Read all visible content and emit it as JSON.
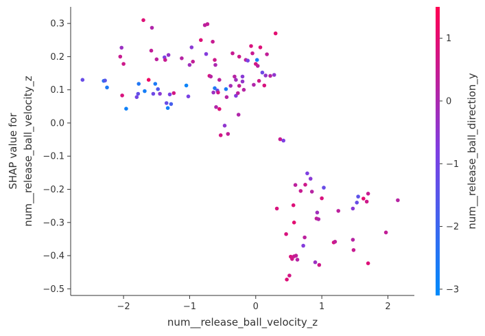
{
  "chart_data": {
    "type": "scatter",
    "title": "",
    "xlabel": "num__release_ball_velocity_z",
    "ylabel_lines": [
      "SHAP value for",
      "num__release_ball_velocity_z"
    ],
    "xlim": [
      -2.8,
      2.4
    ],
    "ylim": [
      -0.52,
      0.35
    ],
    "xticks": [
      -2,
      -1,
      0,
      1,
      2
    ],
    "xtick_labels": [
      "−2",
      "−1",
      "0",
      "1",
      "2"
    ],
    "yticks": [
      0.3,
      0.2,
      0.1,
      0.0,
      -0.1,
      -0.2,
      -0.3,
      -0.4,
      -0.5
    ],
    "ytick_labels": [
      "0.3",
      "0.2",
      "0.1",
      "0.0",
      "−0.1",
      "−0.2",
      "−0.3",
      "−0.4",
      "−0.5"
    ],
    "grid": false,
    "colorbar": {
      "label": "num__release_ball_direction_y",
      "range": [
        -3.1,
        1.5
      ],
      "ticks": [
        1,
        0,
        -1,
        -2,
        -3
      ],
      "tick_labels": [
        "1",
        "0",
        "−1",
        "−2",
        "−3"
      ],
      "color_low": "#008bfb",
      "color_mid": "#7e3fe2",
      "color_high": "#ff0052"
    },
    "points": [
      {
        "x": -2.62,
        "y": 0.13,
        "c": -1.2
      },
      {
        "x": -2.3,
        "y": 0.127,
        "c": -2.4
      },
      {
        "x": -2.28,
        "y": 0.128,
        "c": -1.5
      },
      {
        "x": -2.25,
        "y": 0.107,
        "c": -2.6
      },
      {
        "x": -2.05,
        "y": 0.2,
        "c": 0.5
      },
      {
        "x": -2.03,
        "y": 0.227,
        "c": -0.3
      },
      {
        "x": -2.02,
        "y": 0.083,
        "c": 0.8
      },
      {
        "x": -2.0,
        "y": 0.178,
        "c": 0.6
      },
      {
        "x": -1.96,
        "y": 0.043,
        "c": -2.8
      },
      {
        "x": -1.8,
        "y": 0.078,
        "c": -1.0
      },
      {
        "x": -1.78,
        "y": 0.088,
        "c": -1.3
      },
      {
        "x": -1.77,
        "y": 0.118,
        "c": -2.5
      },
      {
        "x": -1.7,
        "y": 0.31,
        "c": 0.9
      },
      {
        "x": -1.68,
        "y": 0.096,
        "c": -2.7
      },
      {
        "x": -1.62,
        "y": 0.13,
        "c": 1.2
      },
      {
        "x": -1.58,
        "y": 0.218,
        "c": 0.4
      },
      {
        "x": -1.57,
        "y": 0.287,
        "c": 0.1
      },
      {
        "x": -1.55,
        "y": 0.088,
        "c": -1.1
      },
      {
        "x": -1.52,
        "y": 0.118,
        "c": -2.6
      },
      {
        "x": -1.5,
        "y": 0.192,
        "c": 0.3
      },
      {
        "x": -1.48,
        "y": 0.102,
        "c": -1.6
      },
      {
        "x": -1.45,
        "y": 0.088,
        "c": -0.6
      },
      {
        "x": -1.38,
        "y": 0.198,
        "c": -0.8
      },
      {
        "x": -1.37,
        "y": 0.19,
        "c": 0.5
      },
      {
        "x": -1.35,
        "y": 0.06,
        "c": -1.2
      },
      {
        "x": -1.33,
        "y": 0.045,
        "c": -2.8
      },
      {
        "x": -1.32,
        "y": 0.205,
        "c": -0.4
      },
      {
        "x": -1.3,
        "y": 0.086,
        "c": -0.9
      },
      {
        "x": -1.28,
        "y": 0.057,
        "c": -1.8
      },
      {
        "x": -1.24,
        "y": 0.09,
        "c": 0.7
      },
      {
        "x": -1.12,
        "y": 0.195,
        "c": 0.2
      },
      {
        "x": -1.05,
        "y": 0.113,
        "c": -2.9
      },
      {
        "x": -1.02,
        "y": 0.08,
        "c": -0.9
      },
      {
        "x": -1.0,
        "y": 0.175,
        "c": -0.2
      },
      {
        "x": -0.97,
        "y": 0.228,
        "c": -0.6
      },
      {
        "x": -0.95,
        "y": 0.185,
        "c": 0.4
      },
      {
        "x": -0.83,
        "y": 0.25,
        "c": 0.9
      },
      {
        "x": -0.77,
        "y": 0.295,
        "c": 0.3
      },
      {
        "x": -0.75,
        "y": 0.208,
        "c": -0.7
      },
      {
        "x": -0.73,
        "y": 0.298,
        "c": 0.4
      },
      {
        "x": -0.7,
        "y": 0.142,
        "c": 0.8
      },
      {
        "x": -0.68,
        "y": 0.14,
        "c": 0.2
      },
      {
        "x": -0.65,
        "y": 0.245,
        "c": 0.5
      },
      {
        "x": -0.64,
        "y": 0.092,
        "c": -0.3
      },
      {
        "x": -0.62,
        "y": 0.105,
        "c": -2.5
      },
      {
        "x": -0.62,
        "y": 0.19,
        "c": 0.6
      },
      {
        "x": -0.61,
        "y": 0.175,
        "c": 0.0
      },
      {
        "x": -0.6,
        "y": 0.048,
        "c": 0.1
      },
      {
        "x": -0.58,
        "y": 0.098,
        "c": -1.1
      },
      {
        "x": -0.57,
        "y": 0.092,
        "c": 0.6
      },
      {
        "x": -0.55,
        "y": 0.042,
        "c": 0.9
      },
      {
        "x": -0.55,
        "y": 0.13,
        "c": 0.3
      },
      {
        "x": -0.53,
        "y": -0.037,
        "c": 0.7
      },
      {
        "x": -0.47,
        "y": -0.008,
        "c": -0.5
      },
      {
        "x": -0.45,
        "y": 0.102,
        "c": -2.6
      },
      {
        "x": -0.44,
        "y": 0.078,
        "c": 0.2
      },
      {
        "x": -0.42,
        "y": -0.033,
        "c": 0.4
      },
      {
        "x": -0.38,
        "y": 0.112,
        "c": -0.1
      },
      {
        "x": -0.35,
        "y": 0.21,
        "c": 0.5
      },
      {
        "x": -0.32,
        "y": 0.14,
        "c": 0.2
      },
      {
        "x": -0.3,
        "y": 0.13,
        "c": -0.2
      },
      {
        "x": -0.3,
        "y": 0.082,
        "c": -0.7
      },
      {
        "x": -0.27,
        "y": 0.09,
        "c": 0.3
      },
      {
        "x": -0.26,
        "y": 0.025,
        "c": 0.1
      },
      {
        "x": -0.25,
        "y": 0.112,
        "c": 0.4
      },
      {
        "x": -0.25,
        "y": 0.2,
        "c": 0.6
      },
      {
        "x": -0.2,
        "y": 0.14,
        "c": -0.6
      },
      {
        "x": -0.2,
        "y": 0.125,
        "c": -0.4
      },
      {
        "x": -0.18,
        "y": 0.1,
        "c": 0.2
      },
      {
        "x": -0.15,
        "y": 0.19,
        "c": 0.3
      },
      {
        "x": -0.12,
        "y": 0.188,
        "c": -0.9
      },
      {
        "x": -0.07,
        "y": 0.232,
        "c": 0.8
      },
      {
        "x": -0.05,
        "y": 0.21,
        "c": 0.5
      },
      {
        "x": -0.03,
        "y": 0.115,
        "c": 0.1
      },
      {
        "x": 0.0,
        "y": 0.178,
        "c": 0.7
      },
      {
        "x": 0.02,
        "y": 0.19,
        "c": -2.7
      },
      {
        "x": 0.03,
        "y": 0.172,
        "c": 0.3
      },
      {
        "x": 0.05,
        "y": 0.127,
        "c": 0.6
      },
      {
        "x": 0.07,
        "y": 0.228,
        "c": 0.9
      },
      {
        "x": 0.1,
        "y": 0.152,
        "c": -1.1
      },
      {
        "x": 0.13,
        "y": 0.113,
        "c": 0.8
      },
      {
        "x": 0.15,
        "y": 0.143,
        "c": -0.4
      },
      {
        "x": 0.17,
        "y": 0.207,
        "c": 0.4
      },
      {
        "x": 0.22,
        "y": 0.142,
        "c": 0.2
      },
      {
        "x": 0.28,
        "y": 0.145,
        "c": -0.5
      },
      {
        "x": 0.3,
        "y": 0.27,
        "c": 1.0
      },
      {
        "x": 0.32,
        "y": -0.258,
        "c": 0.8
      },
      {
        "x": 0.37,
        "y": -0.049,
        "c": 0.5
      },
      {
        "x": 0.42,
        "y": -0.053,
        "c": -0.8
      },
      {
        "x": 0.46,
        "y": -0.335,
        "c": 0.8
      },
      {
        "x": 0.47,
        "y": -0.472,
        "c": 0.9
      },
      {
        "x": 0.51,
        "y": -0.46,
        "c": 0.7
      },
      {
        "x": 0.53,
        "y": -0.403,
        "c": 0.8
      },
      {
        "x": 0.55,
        "y": -0.41,
        "c": 0.6
      },
      {
        "x": 0.57,
        "y": -0.248,
        "c": 0.9
      },
      {
        "x": 0.58,
        "y": -0.3,
        "c": 1.0
      },
      {
        "x": 0.58,
        "y": -0.402,
        "c": 0.5
      },
      {
        "x": 0.6,
        "y": -0.187,
        "c": 0.3
      },
      {
        "x": 0.61,
        "y": -0.4,
        "c": 0.4
      },
      {
        "x": 0.63,
        "y": -0.412,
        "c": 0.2
      },
      {
        "x": 0.68,
        "y": -0.205,
        "c": 0.5
      },
      {
        "x": 0.72,
        "y": -0.37,
        "c": -0.7
      },
      {
        "x": 0.74,
        "y": -0.345,
        "c": 0.3
      },
      {
        "x": 0.75,
        "y": -0.186,
        "c": 0.6
      },
      {
        "x": 0.78,
        "y": -0.152,
        "c": -0.8
      },
      {
        "x": 0.83,
        "y": -0.168,
        "c": -0.6
      },
      {
        "x": 0.85,
        "y": -0.207,
        "c": 0.2
      },
      {
        "x": 0.9,
        "y": -0.42,
        "c": -0.3
      },
      {
        "x": 0.92,
        "y": -0.288,
        "c": 0.4
      },
      {
        "x": 0.93,
        "y": -0.27,
        "c": -0.2
      },
      {
        "x": 0.95,
        "y": -0.29,
        "c": 0.1
      },
      {
        "x": 0.96,
        "y": -0.428,
        "c": 0.6
      },
      {
        "x": 1.0,
        "y": -0.227,
        "c": 0.8
      },
      {
        "x": 1.03,
        "y": -0.195,
        "c": -1.2
      },
      {
        "x": 1.18,
        "y": -0.36,
        "c": 0.8
      },
      {
        "x": 1.2,
        "y": -0.358,
        "c": 0.4
      },
      {
        "x": 1.25,
        "y": -0.265,
        "c": 0.3
      },
      {
        "x": 1.47,
        "y": -0.258,
        "c": -0.6
      },
      {
        "x": 1.47,
        "y": -0.352,
        "c": 0.2
      },
      {
        "x": 1.48,
        "y": -0.383,
        "c": 0.5
      },
      {
        "x": 1.53,
        "y": -0.24,
        "c": -1.2
      },
      {
        "x": 1.55,
        "y": -0.222,
        "c": -1.4
      },
      {
        "x": 1.63,
        "y": -0.228,
        "c": 1.0
      },
      {
        "x": 1.68,
        "y": -0.237,
        "c": 0.6
      },
      {
        "x": 1.7,
        "y": -0.213,
        "c": 0.5
      },
      {
        "x": 1.7,
        "y": -0.423,
        "c": 0.9
      },
      {
        "x": 1.97,
        "y": -0.33,
        "c": 0.4
      },
      {
        "x": 2.15,
        "y": -0.233,
        "c": 0.2
      }
    ]
  }
}
